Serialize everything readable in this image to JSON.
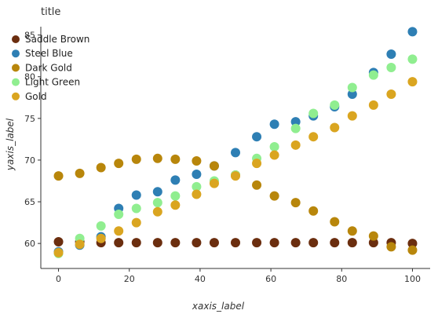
{
  "chart_data": {
    "type": "scatter",
    "title": "title",
    "xlabel": "xaxis_label",
    "ylabel": "yaxis_label",
    "xlim": [
      -5,
      105
    ],
    "ylim": [
      57,
      86
    ],
    "xticks": [
      0,
      20,
      40,
      60,
      80,
      100
    ],
    "yticks": [
      60,
      65,
      70,
      75,
      80,
      85
    ],
    "grid": false,
    "legend_position": "top-left",
    "series": [
      {
        "name": "Saddle Brown",
        "color": "#6b2e0f",
        "x": [
          0,
          6,
          12,
          17,
          22,
          28,
          33,
          39,
          44,
          50,
          56,
          61,
          67,
          72,
          78,
          83,
          89,
          94,
          100
        ],
        "y": [
          60.2,
          60.2,
          60.1,
          60.1,
          60.1,
          60.1,
          60.1,
          60.1,
          60.1,
          60.1,
          60.1,
          60.1,
          60.1,
          60.1,
          60.1,
          60.1,
          60.1,
          60.1,
          60.0
        ]
      },
      {
        "name": "Steel Blue",
        "color": "#2e7fb4",
        "x": [
          0,
          6,
          12,
          17,
          22,
          28,
          33,
          39,
          44,
          50,
          56,
          61,
          67,
          72,
          78,
          83,
          89,
          94,
          100
        ],
        "y": [
          59.0,
          59.8,
          60.8,
          64.2,
          65.8,
          66.2,
          67.6,
          68.3,
          69.3,
          70.9,
          72.8,
          74.3,
          74.6,
          75.3,
          76.4,
          77.9,
          80.5,
          82.7,
          85.4
        ]
      },
      {
        "name": "Dark Gold",
        "color": "#b8860b",
        "x": [
          0,
          6,
          12,
          17,
          22,
          28,
          33,
          39,
          44,
          50,
          56,
          61,
          67,
          72,
          78,
          83,
          89,
          94,
          100
        ],
        "y": [
          68.1,
          68.4,
          69.1,
          69.6,
          70.1,
          70.2,
          70.1,
          69.9,
          69.3,
          68.2,
          67.0,
          65.7,
          64.9,
          63.9,
          62.6,
          61.5,
          60.9,
          59.6,
          59.2
        ]
      },
      {
        "name": "Light Green",
        "color": "#90ee90",
        "x": [
          0,
          6,
          12,
          17,
          22,
          28,
          33,
          39,
          44,
          50,
          56,
          61,
          67,
          72,
          78,
          83,
          89,
          94,
          100
        ],
        "y": [
          58.8,
          60.6,
          62.1,
          63.5,
          64.2,
          64.9,
          65.7,
          66.8,
          67.5,
          68.2,
          70.2,
          71.6,
          73.8,
          75.6,
          76.6,
          78.7,
          80.2,
          81.1,
          82.1
        ]
      },
      {
        "name": "Gold",
        "color": "#daa520",
        "x": [
          0,
          6,
          12,
          17,
          22,
          28,
          33,
          39,
          44,
          50,
          56,
          61,
          67,
          72,
          78,
          83,
          89,
          94,
          100
        ],
        "y": [
          58.9,
          59.9,
          60.6,
          61.5,
          62.5,
          63.8,
          64.6,
          65.9,
          67.2,
          68.1,
          69.6,
          70.6,
          71.8,
          72.8,
          73.9,
          75.3,
          76.6,
          77.9,
          79.4
        ]
      }
    ]
  }
}
